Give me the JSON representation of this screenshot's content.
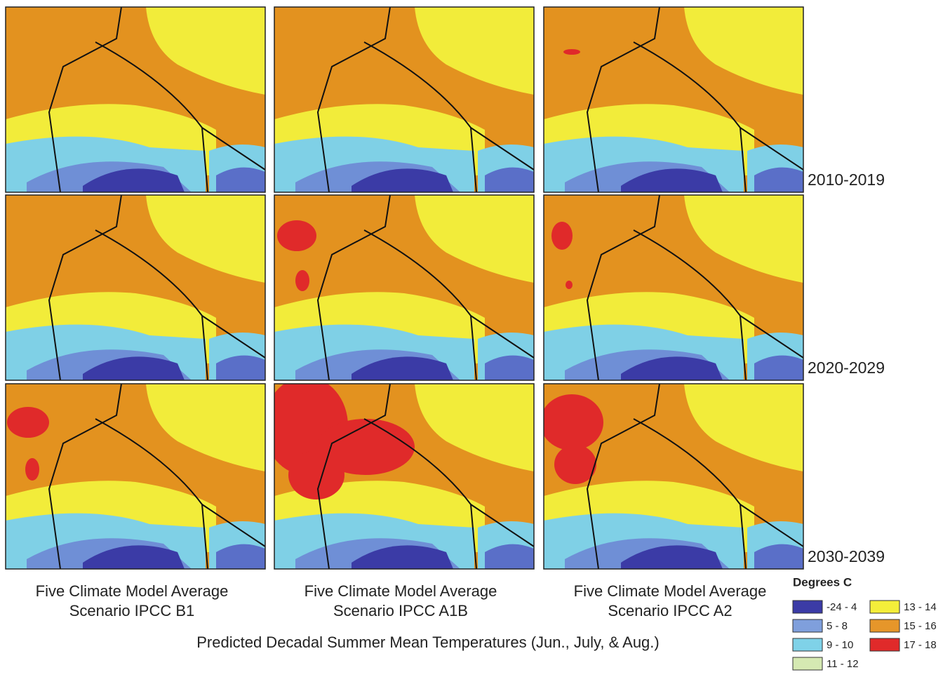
{
  "figure": {
    "row_labels": [
      "2010-2019",
      "2020-2029",
      "2030-2039"
    ],
    "columns": [
      {
        "line1": "Five Climate Model Average",
        "line2": "Scenario IPCC B1"
      },
      {
        "line1": "Five Climate Model Average",
        "line2": "Scenario IPCC A1B"
      },
      {
        "line1": "Five Climate Model Average",
        "line2": "Scenario IPCC A2"
      }
    ],
    "title": "Predicted Decadal Summer Mean Temperatures (Jun., July, & Aug.)",
    "legend": {
      "title": "Degrees C",
      "items": [
        {
          "label": "-24 - 4",
          "color": "#3b3ba6"
        },
        {
          "label": "5 - 8",
          "color": "#7f9fdc"
        },
        {
          "label": "9 - 10",
          "color": "#7fd2e8"
        },
        {
          "label": "11 - 12",
          "color": "#d5e9b2"
        },
        {
          "label": "13 - 14",
          "color": "#f4ee3a"
        },
        {
          "label": "15 - 16",
          "color": "#e6962a"
        },
        {
          "label": "17 - 18",
          "color": "#e02a2a"
        }
      ]
    }
  }
}
